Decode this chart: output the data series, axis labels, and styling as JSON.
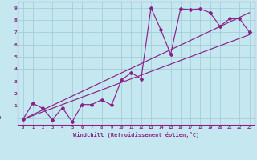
{
  "bg_color": "#c5e8f0",
  "grid_color": "#9fc8d8",
  "line_color": "#882288",
  "xlabel": "Windchill (Refroidissement éolien,°C)",
  "xlim": [
    -0.5,
    23.5
  ],
  "ylim": [
    -0.55,
    9.5
  ],
  "xticks": [
    0,
    1,
    2,
    3,
    4,
    5,
    6,
    7,
    8,
    9,
    10,
    11,
    12,
    13,
    14,
    15,
    16,
    17,
    18,
    19,
    20,
    21,
    22,
    23
  ],
  "yticks": [
    0,
    1,
    2,
    3,
    4,
    5,
    6,
    7,
    8,
    9
  ],
  "s1x": [
    0,
    1,
    2,
    3,
    4,
    5,
    6,
    7,
    8,
    9,
    10,
    11,
    12,
    13,
    14,
    15,
    16,
    17,
    18,
    19,
    20,
    21,
    22,
    23
  ],
  "s1y": [
    -0.1,
    1.2,
    0.8,
    -0.15,
    0.85,
    -0.3,
    1.1,
    1.1,
    1.5,
    1.05,
    3.1,
    3.7,
    3.2,
    9.0,
    7.2,
    5.2,
    8.9,
    8.85,
    8.9,
    8.6,
    7.5,
    8.1,
    8.1,
    7.0
  ],
  "s2x": [
    0,
    23
  ],
  "s2y": [
    -0.1,
    8.6
  ],
  "s3x": [
    0,
    23
  ],
  "s3y": [
    -0.1,
    6.8
  ]
}
